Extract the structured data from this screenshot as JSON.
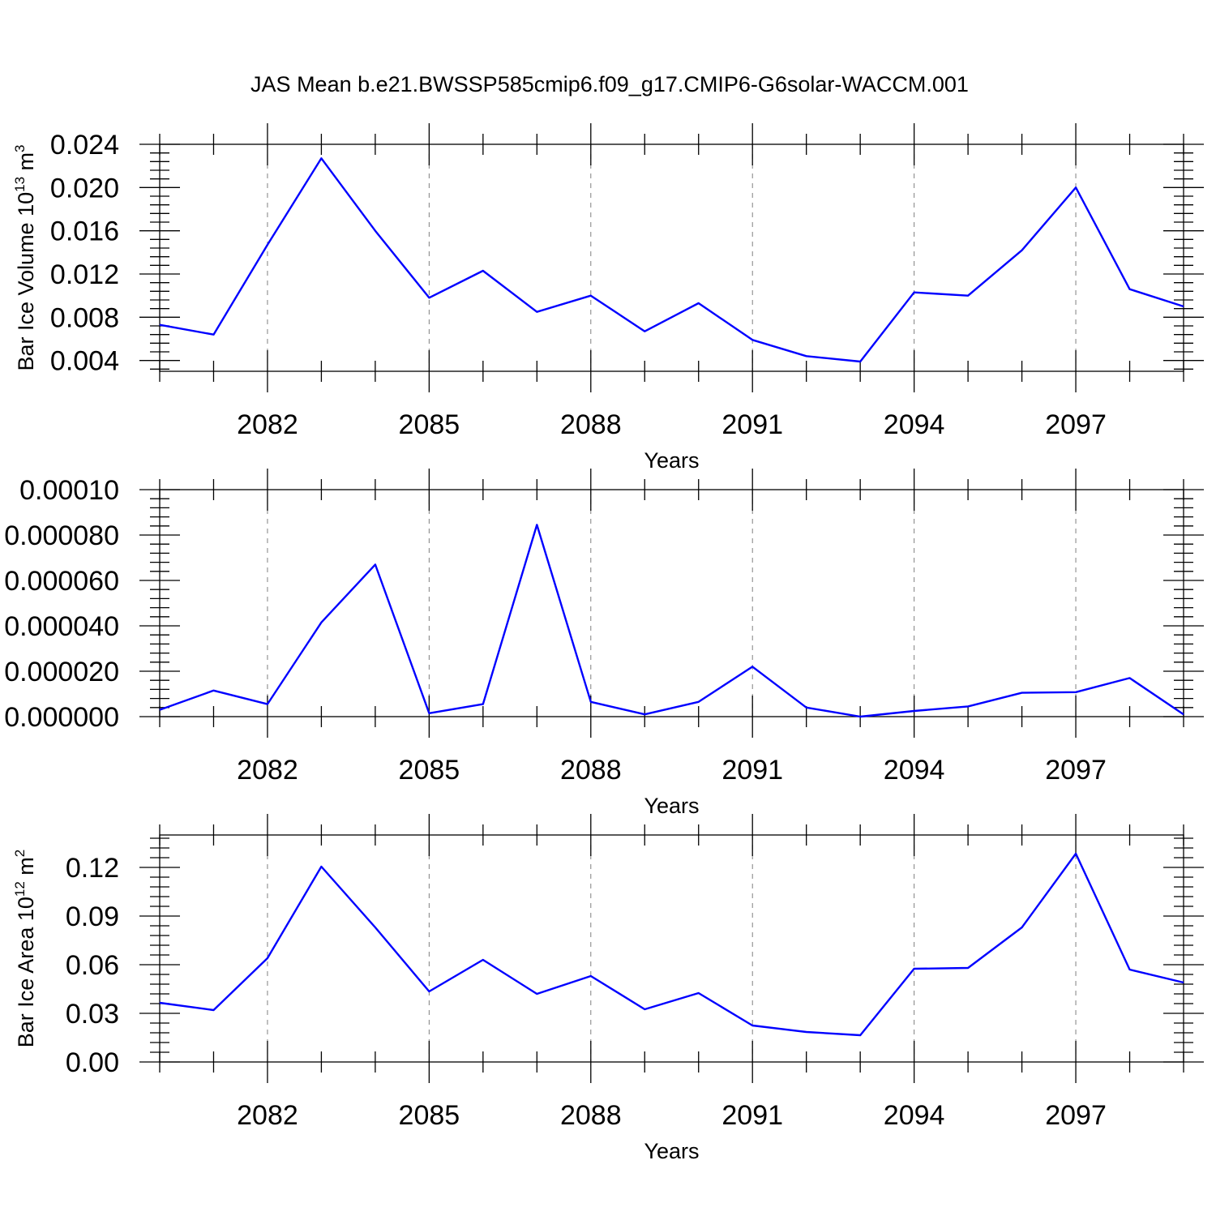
{
  "figure": {
    "title": "JAS Mean b.e21.BWSSP585cmip6.f09_g17.CMIP6-G6solar-WACCM.001",
    "line_color": "#0000ff"
  },
  "chart_data": [
    {
      "type": "line",
      "title": "JAS Mean b.e21.BWSSP585cmip6.f09_g17.CMIP6-G6solar-WACCM.001",
      "xlabel": "Years",
      "ylabel": "Bar Ice Volume 10",
      "ylabel_exponent": "13",
      "ylabel_unit": "m",
      "ylabel_unit_exponent": "3",
      "x": [
        2080,
        2081,
        2082,
        2083,
        2084,
        2085,
        2086,
        2087,
        2088,
        2089,
        2090,
        2091,
        2092,
        2093,
        2094,
        2095,
        2096,
        2097,
        2098,
        2099
      ],
      "values": [
        0.0073,
        0.0064,
        0.0147,
        0.0227,
        0.016,
        0.0098,
        0.0123,
        0.0085,
        0.01,
        0.0067,
        0.0093,
        0.0059,
        0.0044,
        0.0039,
        0.0103,
        0.01,
        0.0142,
        0.02,
        0.0106,
        0.009
      ],
      "xlim": [
        2080,
        2099
      ],
      "ylim": [
        0.003,
        0.024
      ],
      "xticks": [
        2082,
        2085,
        2088,
        2091,
        2094,
        2097
      ],
      "xtick_labels": [
        "2082",
        "2085",
        "2088",
        "2091",
        "2094",
        "2097"
      ],
      "yticks": [
        0.004,
        0.008,
        0.012,
        0.016,
        0.02,
        0.024
      ],
      "ytick_labels": [
        "0.004",
        "0.008",
        "0.012",
        "0.016",
        "0.020",
        "0.024"
      ],
      "grid": "vertical dashed at major x ticks"
    },
    {
      "type": "line",
      "xlabel": "Years",
      "ylabel": "",
      "x": [
        2080,
        2081,
        2082,
        2083,
        2084,
        2085,
        2086,
        2087,
        2088,
        2089,
        2090,
        2091,
        2092,
        2093,
        2094,
        2095,
        2096,
        2097,
        2098,
        2099
      ],
      "values": [
        3e-06,
        1.15e-05,
        5.5e-06,
        4.15e-05,
        6.7e-05,
        1.5e-06,
        5.5e-06,
        8.45e-05,
        6.5e-06,
        1e-06,
        6.5e-06,
        2.2e-05,
        4e-06,
        0.0,
        2.5e-06,
        4.5e-06,
        1.05e-05,
        1.08e-05,
        1.7e-05,
        1e-06
      ],
      "xlim": [
        2080,
        2099
      ],
      "ylim": [
        0.0,
        0.0001
      ],
      "xticks": [
        2082,
        2085,
        2088,
        2091,
        2094,
        2097
      ],
      "xtick_labels": [
        "2082",
        "2085",
        "2088",
        "2091",
        "2094",
        "2097"
      ],
      "yticks": [
        0.0,
        2e-05,
        4e-05,
        6e-05,
        8e-05,
        0.0001
      ],
      "ytick_labels": [
        "0.000000",
        "0.000020",
        "0.000040",
        "0.000060",
        "0.000080",
        "0.00010"
      ],
      "grid": "vertical dashed at major x ticks"
    },
    {
      "type": "line",
      "xlabel": "Years",
      "ylabel": "Bar Ice Area 10",
      "ylabel_exponent": "12",
      "ylabel_unit": "m",
      "ylabel_unit_exponent": "2",
      "x": [
        2080,
        2081,
        2082,
        2083,
        2084,
        2085,
        2086,
        2087,
        2088,
        2089,
        2090,
        2091,
        2092,
        2093,
        2094,
        2095,
        2096,
        2097,
        2098,
        2099
      ],
      "values": [
        0.0365,
        0.032,
        0.064,
        0.1205,
        0.083,
        0.0435,
        0.063,
        0.042,
        0.053,
        0.0325,
        0.0425,
        0.0225,
        0.0185,
        0.0165,
        0.0575,
        0.058,
        0.083,
        0.1285,
        0.057,
        0.049
      ],
      "xlim": [
        2080,
        2099
      ],
      "ylim": [
        0.0,
        0.14
      ],
      "xticks": [
        2082,
        2085,
        2088,
        2091,
        2094,
        2097
      ],
      "xtick_labels": [
        "2082",
        "2085",
        "2088",
        "2091",
        "2094",
        "2097"
      ],
      "yticks": [
        0.0,
        0.03,
        0.06,
        0.09,
        0.12
      ],
      "ytick_labels": [
        "0.00",
        "0.03",
        "0.06",
        "0.09",
        "0.12"
      ],
      "grid": "vertical dashed at major x ticks"
    }
  ]
}
